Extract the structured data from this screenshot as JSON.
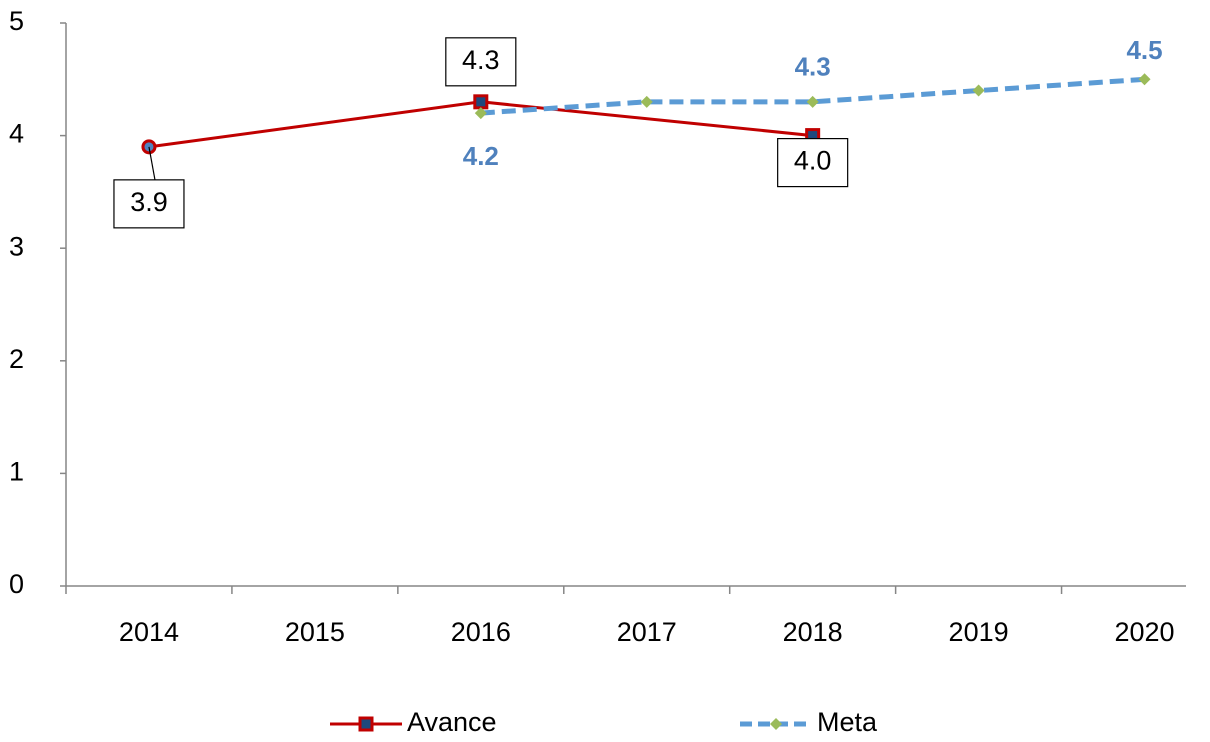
{
  "chart_data": {
    "type": "line",
    "xlim": [
      2013.5,
      2020.25
    ],
    "xticks": [
      2014,
      2015,
      2016,
      2017,
      2018,
      2019,
      2020
    ],
    "ylim": [
      0,
      5
    ],
    "yticks": [
      0,
      1,
      2,
      3,
      4,
      5
    ],
    "legend": "bottom",
    "series": [
      {
        "name": "Avance",
        "color": "#c00000",
        "x": [
          2014,
          2016,
          2018
        ],
        "values": [
          3.9,
          4.3,
          4.0
        ],
        "value_labels": [
          "3.9",
          "4.3",
          "4.0"
        ]
      },
      {
        "name": "Meta",
        "color": "#5b9bd5",
        "x": [
          2016,
          2017,
          2018,
          2019,
          2020
        ],
        "values": [
          4.2,
          4.3,
          4.3,
          4.4,
          4.5
        ],
        "value_labels": [
          "4.2",
          null,
          "4.3",
          null,
          "4.5"
        ]
      }
    ]
  }
}
